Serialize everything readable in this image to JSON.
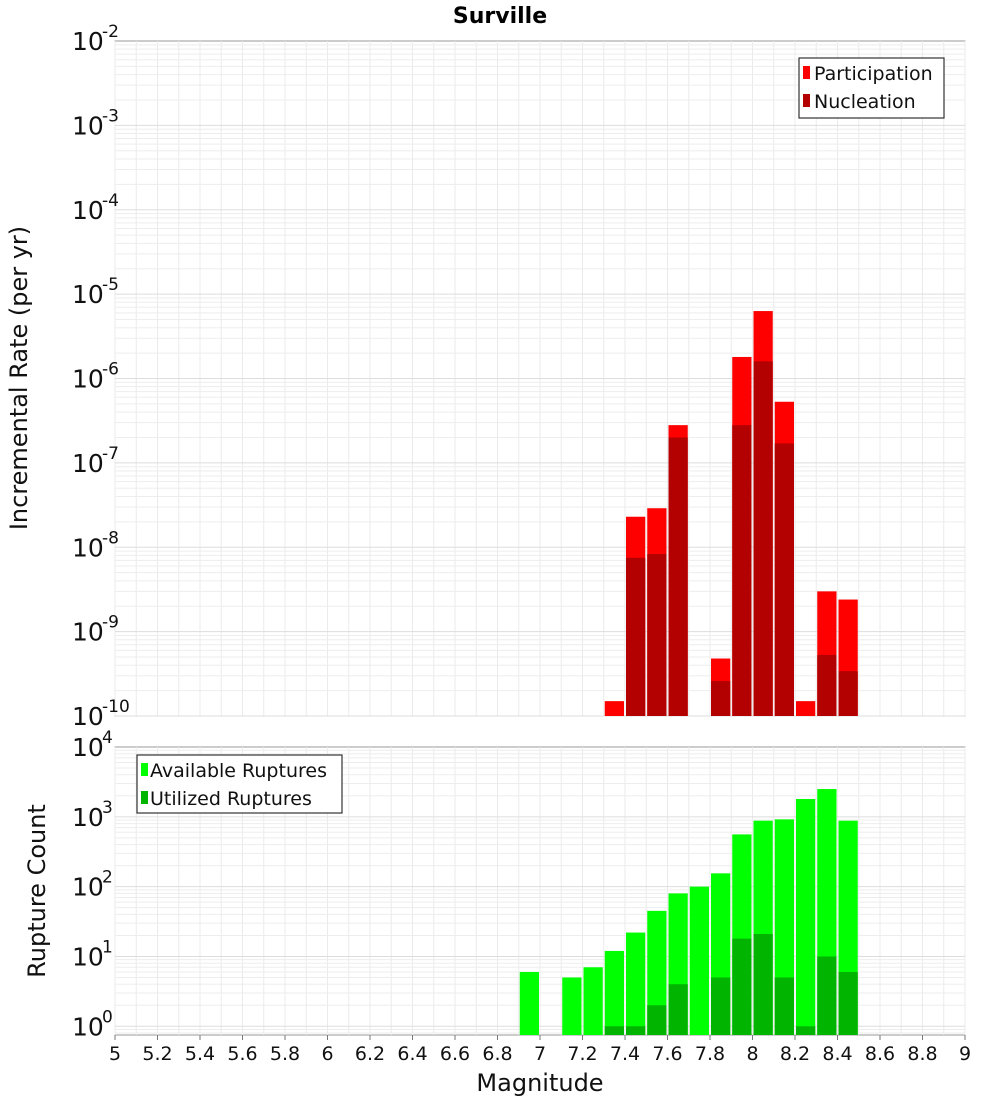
{
  "chart_data": [
    {
      "type": "bar",
      "title": "Surville",
      "xlabel": "Magnitude",
      "ylabel": "Incremental Rate (per yr)",
      "ylog": true,
      "xlim": [
        5,
        9
      ],
      "ylim": [
        1e-10,
        0.01
      ],
      "y_tick_exponents": [
        "-10",
        "-9",
        "-8",
        "-7",
        "-6",
        "-5",
        "-4",
        "-3",
        "-2"
      ],
      "bin_width": 0.1,
      "grid": true,
      "legend_position": "top-right",
      "series": [
        {
          "name": "Participation",
          "color": "#ff0000",
          "x": [
            7.35,
            7.45,
            7.55,
            7.65,
            7.85,
            7.95,
            8.05,
            8.15,
            8.25,
            8.35,
            8.45
          ],
          "values": [
            1.5e-10,
            2.3e-08,
            2.9e-08,
            2.8e-07,
            4.8e-10,
            1.8e-06,
            6.3e-06,
            5.3e-07,
            1.5e-10,
            3e-09,
            2.4e-09
          ]
        },
        {
          "name": "Nucleation",
          "color": "#b30000",
          "x": [
            7.45,
            7.55,
            7.65,
            7.85,
            7.95,
            8.05,
            8.15,
            8.35,
            8.45
          ],
          "values": [
            7.5e-09,
            8.3e-09,
            2e-07,
            2.6e-10,
            2.8e-07,
            1.6e-06,
            1.7e-07,
            5.3e-10,
            3.4e-10
          ]
        }
      ]
    },
    {
      "type": "bar",
      "xlabel": "Magnitude",
      "ylabel": "Rupture Count",
      "ylog": true,
      "xlim": [
        5,
        9
      ],
      "ylim": [
        0.75,
        10000
      ],
      "y_tick_exponents": [
        "0",
        "1",
        "2",
        "3",
        "4"
      ],
      "x_ticks": [
        "5",
        "5.2",
        "5.4",
        "5.6",
        "5.8",
        "6",
        "6.2",
        "6.4",
        "6.6",
        "6.8",
        "7",
        "7.2",
        "7.4",
        "7.6",
        "7.8",
        "8",
        "8.2",
        "8.4",
        "8.6",
        "8.8",
        "9"
      ],
      "bin_width": 0.1,
      "grid": true,
      "legend_position": "top-left",
      "series": [
        {
          "name": "Available Ruptures",
          "color": "#00ff00",
          "x": [
            6.95,
            7.15,
            7.25,
            7.35,
            7.45,
            7.55,
            7.65,
            7.75,
            7.85,
            7.95,
            8.05,
            8.15,
            8.25,
            8.35,
            8.45
          ],
          "values": [
            6,
            5,
            7,
            12,
            22,
            45,
            80,
            100,
            155,
            560,
            880,
            920,
            1800,
            2500,
            880
          ]
        },
        {
          "name": "Utilized Ruptures",
          "color": "#00b400",
          "x": [
            7.35,
            7.45,
            7.55,
            7.65,
            7.85,
            7.95,
            8.05,
            8.15,
            8.25,
            8.35,
            8.45
          ],
          "values": [
            1,
            1,
            2,
            4,
            5,
            18,
            21,
            5,
            1,
            10,
            6
          ]
        }
      ]
    }
  ]
}
